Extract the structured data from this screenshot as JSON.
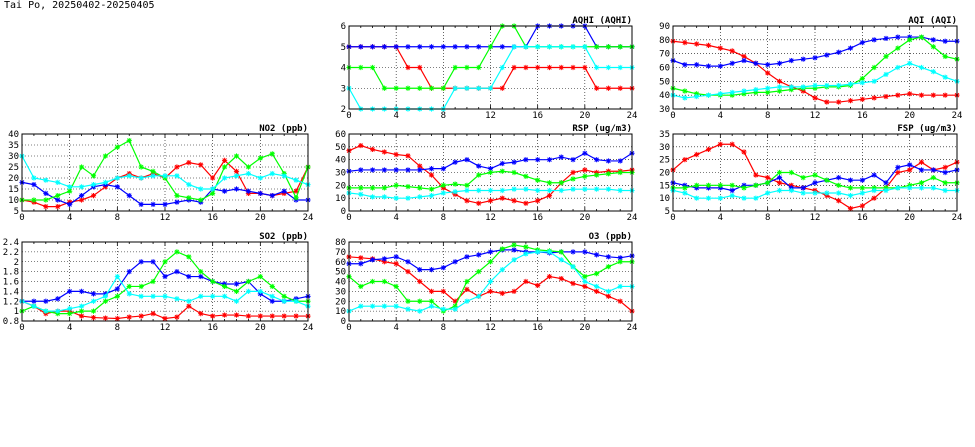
{
  "page": {
    "title": "Tai Po, 20250402-20250405"
  },
  "colors": {
    "2025-04-02": "#ff0000",
    "2025-04-03": "#0000ff",
    "2025-04-04": "#00ff00",
    "2025-04-05": "#00ffff"
  },
  "chart_data": [
    {
      "id": "aqhi",
      "type": "line",
      "title": "AQHI (AQHI)",
      "xlim": [
        0,
        24
      ],
      "xticks": [
        0,
        4,
        8,
        12,
        16,
        20,
        24
      ],
      "ylim": [
        2,
        6
      ],
      "yticks": [
        2,
        3,
        4,
        5,
        6
      ],
      "grid": true,
      "x": [
        0,
        1,
        2,
        3,
        4,
        5,
        6,
        7,
        8,
        9,
        10,
        11,
        12,
        13,
        14,
        15,
        16,
        17,
        18,
        19,
        20,
        21,
        22,
        23,
        24
      ],
      "series": [
        {
          "color": "#ff0000",
          "values": [
            5,
            5,
            5,
            5,
            5,
            4,
            4,
            3,
            3,
            3,
            3,
            3,
            3,
            3,
            4,
            4,
            4,
            4,
            4,
            4,
            4,
            3,
            3,
            3,
            3
          ]
        },
        {
          "color": "#0000ff",
          "values": [
            5,
            5,
            5,
            5,
            5,
            5,
            5,
            5,
            5,
            5,
            5,
            5,
            5,
            5,
            5,
            5,
            6,
            6,
            6,
            6,
            6,
            5,
            5,
            5,
            5
          ]
        },
        {
          "color": "#00ff00",
          "values": [
            4,
            4,
            4,
            3,
            3,
            3,
            3,
            3,
            3,
            4,
            4,
            4,
            5,
            6,
            6,
            5,
            5,
            5,
            5,
            5,
            5,
            5,
            5,
            5,
            5
          ]
        },
        {
          "color": "#00ffff",
          "values": [
            3,
            2,
            2,
            2,
            2,
            2,
            2,
            2,
            2,
            3,
            3,
            3,
            3,
            4,
            5,
            5,
            5,
            5,
            5,
            5,
            5,
            4,
            4,
            4,
            4
          ]
        }
      ]
    },
    {
      "id": "aqi",
      "type": "line",
      "title": "AQI (AQI)",
      "xlim": [
        0,
        24
      ],
      "xticks": [
        0,
        4,
        8,
        12,
        16,
        20,
        24
      ],
      "ylim": [
        30,
        90
      ],
      "yticks": [
        30,
        40,
        50,
        60,
        70,
        80,
        90
      ],
      "grid": true,
      "x": [
        0,
        1,
        2,
        3,
        4,
        5,
        6,
        7,
        8,
        9,
        10,
        11,
        12,
        13,
        14,
        15,
        16,
        17,
        18,
        19,
        20,
        21,
        22,
        23,
        24
      ],
      "series": [
        {
          "color": "#ff0000",
          "values": [
            79,
            78,
            77,
            76,
            74,
            72,
            68,
            63,
            56,
            50,
            46,
            43,
            38,
            35,
            35,
            36,
            37,
            38,
            39,
            40,
            41,
            40,
            40,
            40,
            40
          ]
        },
        {
          "color": "#0000ff",
          "values": [
            65,
            62,
            62,
            61,
            61,
            63,
            65,
            63,
            62,
            63,
            65,
            66,
            67,
            69,
            71,
            74,
            78,
            80,
            81,
            82,
            82,
            82,
            80,
            79,
            79
          ]
        },
        {
          "color": "#00ff00",
          "values": [
            45,
            43,
            41,
            40,
            40,
            40,
            41,
            42,
            42,
            43,
            44,
            45,
            45,
            46,
            46,
            47,
            52,
            60,
            68,
            74,
            80,
            82,
            75,
            68,
            66
          ]
        },
        {
          "color": "#00ffff",
          "values": [
            40,
            38,
            39,
            40,
            41,
            42,
            43,
            44,
            45,
            46,
            46,
            46,
            47,
            47,
            47,
            48,
            49,
            50,
            55,
            60,
            63,
            60,
            57,
            53,
            50
          ]
        }
      ]
    },
    {
      "id": "no2",
      "type": "line",
      "title": "NO2 (ppb)",
      "xlim": [
        0,
        24
      ],
      "xticks": [
        0,
        4,
        8,
        12,
        16,
        20,
        24
      ],
      "ylim": [
        5,
        40
      ],
      "yticks": [
        5,
        10,
        15,
        20,
        25,
        30,
        35,
        40
      ],
      "grid": true,
      "x": [
        0,
        1,
        2,
        3,
        4,
        5,
        6,
        7,
        8,
        9,
        10,
        11,
        12,
        13,
        14,
        15,
        16,
        17,
        18,
        19,
        20,
        21,
        22,
        23,
        24
      ],
      "series": [
        {
          "color": "#ff0000",
          "values": [
            10,
            9,
            7,
            7,
            9,
            10,
            12,
            16,
            20,
            22,
            20,
            22,
            20,
            25,
            27,
            26,
            20,
            28,
            23,
            13,
            13,
            12,
            13,
            14,
            25
          ]
        },
        {
          "color": "#0000ff",
          "values": [
            18,
            17,
            13,
            10,
            8,
            12,
            16,
            17,
            16,
            12,
            8,
            8,
            8,
            9,
            10,
            9,
            15,
            14,
            15,
            14,
            13,
            12,
            14,
            10,
            10
          ]
        },
        {
          "color": "#00ff00",
          "values": [
            10,
            10,
            10,
            12,
            14,
            25,
            21,
            30,
            34,
            37,
            25,
            23,
            20,
            12,
            11,
            10,
            13,
            25,
            30,
            25,
            29,
            31,
            22,
            11,
            25
          ]
        },
        {
          "color": "#00ffff",
          "values": [
            30,
            20,
            19,
            18,
            16,
            16,
            17,
            18,
            20,
            21,
            20,
            21,
            21,
            21,
            17,
            15,
            15,
            20,
            21,
            22,
            20,
            22,
            21,
            19,
            17
          ]
        }
      ]
    },
    {
      "id": "rsp",
      "type": "line",
      "title": "RSP (ug/m3)",
      "xlim": [
        0,
        24
      ],
      "xticks": [
        0,
        4,
        8,
        12,
        16,
        20,
        24
      ],
      "ylim": [
        0,
        60
      ],
      "yticks": [
        0,
        10,
        20,
        30,
        40,
        50,
        60
      ],
      "grid": true,
      "x": [
        0,
        1,
        2,
        3,
        4,
        5,
        6,
        7,
        8,
        9,
        10,
        11,
        12,
        13,
        14,
        15,
        16,
        17,
        18,
        19,
        20,
        21,
        22,
        23,
        24
      ],
      "series": [
        {
          "color": "#ff0000",
          "values": [
            47,
            51,
            48,
            46,
            44,
            43,
            35,
            28,
            18,
            13,
            8,
            6,
            8,
            10,
            8,
            6,
            8,
            12,
            22,
            30,
            32,
            30,
            31,
            31,
            32
          ]
        },
        {
          "color": "#0000ff",
          "values": [
            31,
            32,
            32,
            32,
            32,
            32,
            32,
            33,
            33,
            38,
            40,
            35,
            33,
            37,
            38,
            40,
            40,
            40,
            42,
            40,
            45,
            40,
            39,
            39,
            45
          ]
        },
        {
          "color": "#00ff00",
          "values": [
            18,
            18,
            18,
            18,
            20,
            19,
            18,
            17,
            20,
            21,
            20,
            28,
            30,
            31,
            30,
            27,
            24,
            22,
            22,
            25,
            27,
            28,
            29,
            30,
            30
          ]
        },
        {
          "color": "#00ffff",
          "values": [
            14,
            13,
            11,
            11,
            10,
            10,
            11,
            12,
            14,
            15,
            16,
            16,
            16,
            16,
            17,
            17,
            16,
            16,
            16,
            17,
            17,
            17,
            17,
            16,
            16
          ]
        }
      ]
    },
    {
      "id": "fsp",
      "type": "line",
      "title": "FSP (ug/m3)",
      "xlim": [
        0,
        24
      ],
      "xticks": [
        0,
        4,
        8,
        12,
        16,
        20,
        24
      ],
      "ylim": [
        5,
        35
      ],
      "yticks": [
        5,
        10,
        15,
        20,
        25,
        30,
        35
      ],
      "grid": true,
      "x": [
        0,
        1,
        2,
        3,
        4,
        5,
        6,
        7,
        8,
        9,
        10,
        11,
        12,
        13,
        14,
        15,
        16,
        17,
        18,
        19,
        20,
        21,
        22,
        23,
        24
      ],
      "series": [
        {
          "color": "#ff0000",
          "values": [
            21,
            25,
            27,
            29,
            31,
            31,
            28,
            19,
            18,
            16,
            15,
            14,
            13,
            11,
            9,
            6,
            7,
            10,
            14,
            20,
            21,
            24,
            21,
            22,
            24
          ]
        },
        {
          "color": "#0000ff",
          "values": [
            16,
            15,
            14,
            14,
            14,
            13,
            15,
            15,
            16,
            18,
            14,
            14,
            16,
            17,
            18,
            17,
            17,
            19,
            16,
            22,
            23,
            21,
            21,
            20,
            21
          ]
        },
        {
          "color": "#00ff00",
          "values": [
            14,
            14,
            15,
            15,
            15,
            15,
            14,
            15,
            16,
            20,
            20,
            18,
            19,
            17,
            15,
            14,
            14,
            14,
            14,
            14,
            15,
            16,
            18,
            16,
            16
          ]
        },
        {
          "color": "#00ffff",
          "values": [
            13,
            12,
            10,
            10,
            10,
            11,
            10,
            10,
            12,
            13,
            13,
            12,
            12,
            12,
            12,
            11,
            12,
            13,
            13,
            14,
            14,
            14,
            14,
            13,
            13
          ]
        }
      ]
    },
    {
      "id": "so2",
      "type": "line",
      "title": "SO2 (ppb)",
      "xlim": [
        0,
        24
      ],
      "xticks": [
        0,
        4,
        8,
        12,
        16,
        20,
        24
      ],
      "ylim": [
        0.8,
        2.4
      ],
      "yticks": [
        0.8,
        1.0,
        1.2,
        1.4,
        1.6,
        1.8,
        2.0,
        2.2,
        2.4
      ],
      "grid": true,
      "x": [
        0,
        1,
        2,
        3,
        4,
        5,
        6,
        7,
        8,
        9,
        10,
        11,
        12,
        13,
        14,
        15,
        16,
        17,
        18,
        19,
        20,
        21,
        22,
        23,
        24
      ],
      "series": [
        {
          "color": "#ff0000",
          "values": [
            1.2,
            1.1,
            0.95,
            1.0,
            1.0,
            0.9,
            0.87,
            0.86,
            0.85,
            0.88,
            0.9,
            0.95,
            0.85,
            0.88,
            1.1,
            0.95,
            0.9,
            0.92,
            0.92,
            0.9,
            0.9,
            0.9,
            0.9,
            0.9,
            0.9
          ]
        },
        {
          "color": "#0000ff",
          "values": [
            1.2,
            1.2,
            1.2,
            1.25,
            1.4,
            1.4,
            1.35,
            1.35,
            1.45,
            1.8,
            2.0,
            2.0,
            1.7,
            1.8,
            1.7,
            1.7,
            1.6,
            1.55,
            1.55,
            1.6,
            1.35,
            1.2,
            1.2,
            1.25,
            1.3
          ]
        },
        {
          "color": "#00ff00",
          "values": [
            1.0,
            1.1,
            1.0,
            0.95,
            0.95,
            1.0,
            1.0,
            1.2,
            1.3,
            1.5,
            1.5,
            1.6,
            2.0,
            2.2,
            2.1,
            1.8,
            1.6,
            1.5,
            1.4,
            1.6,
            1.7,
            1.5,
            1.3,
            1.2,
            1.2
          ]
        },
        {
          "color": "#00ffff",
          "values": [
            1.2,
            1.1,
            1.0,
            1.0,
            1.05,
            1.1,
            1.2,
            1.3,
            1.7,
            1.35,
            1.3,
            1.3,
            1.3,
            1.25,
            1.2,
            1.3,
            1.3,
            1.3,
            1.2,
            1.4,
            1.4,
            1.3,
            1.2,
            1.2,
            1.1
          ]
        }
      ]
    },
    {
      "id": "o3",
      "type": "line",
      "title": "O3 (ppb)",
      "xlim": [
        0,
        24
      ],
      "xticks": [
        0,
        4,
        8,
        12,
        16,
        20,
        24
      ],
      "ylim": [
        0,
        80
      ],
      "yticks": [
        0,
        10,
        20,
        30,
        40,
        50,
        60,
        70,
        80
      ],
      "grid": true,
      "x": [
        0,
        1,
        2,
        3,
        4,
        5,
        6,
        7,
        8,
        9,
        10,
        11,
        12,
        13,
        14,
        15,
        16,
        17,
        18,
        19,
        20,
        21,
        22,
        23,
        24
      ],
      "series": [
        {
          "color": "#ff0000",
          "values": [
            65,
            64,
            63,
            60,
            58,
            50,
            40,
            30,
            30,
            20,
            32,
            25,
            30,
            28,
            30,
            40,
            36,
            45,
            43,
            38,
            35,
            30,
            25,
            20,
            10
          ]
        },
        {
          "color": "#0000ff",
          "values": [
            58,
            58,
            62,
            63,
            65,
            60,
            52,
            52,
            54,
            60,
            65,
            67,
            70,
            72,
            72,
            70,
            70,
            69,
            70,
            70,
            70,
            67,
            65,
            64,
            66
          ]
        },
        {
          "color": "#00ff00",
          "values": [
            45,
            35,
            40,
            40,
            35,
            20,
            20,
            20,
            10,
            15,
            40,
            50,
            60,
            73,
            77,
            75,
            72,
            71,
            70,
            55,
            45,
            48,
            55,
            60,
            60
          ]
        },
        {
          "color": "#00ffff",
          "values": [
            10,
            15,
            15,
            15,
            15,
            12,
            10,
            15,
            12,
            12,
            20,
            25,
            40,
            52,
            62,
            68,
            70,
            70,
            62,
            55,
            40,
            35,
            30,
            35,
            35
          ]
        }
      ]
    }
  ]
}
